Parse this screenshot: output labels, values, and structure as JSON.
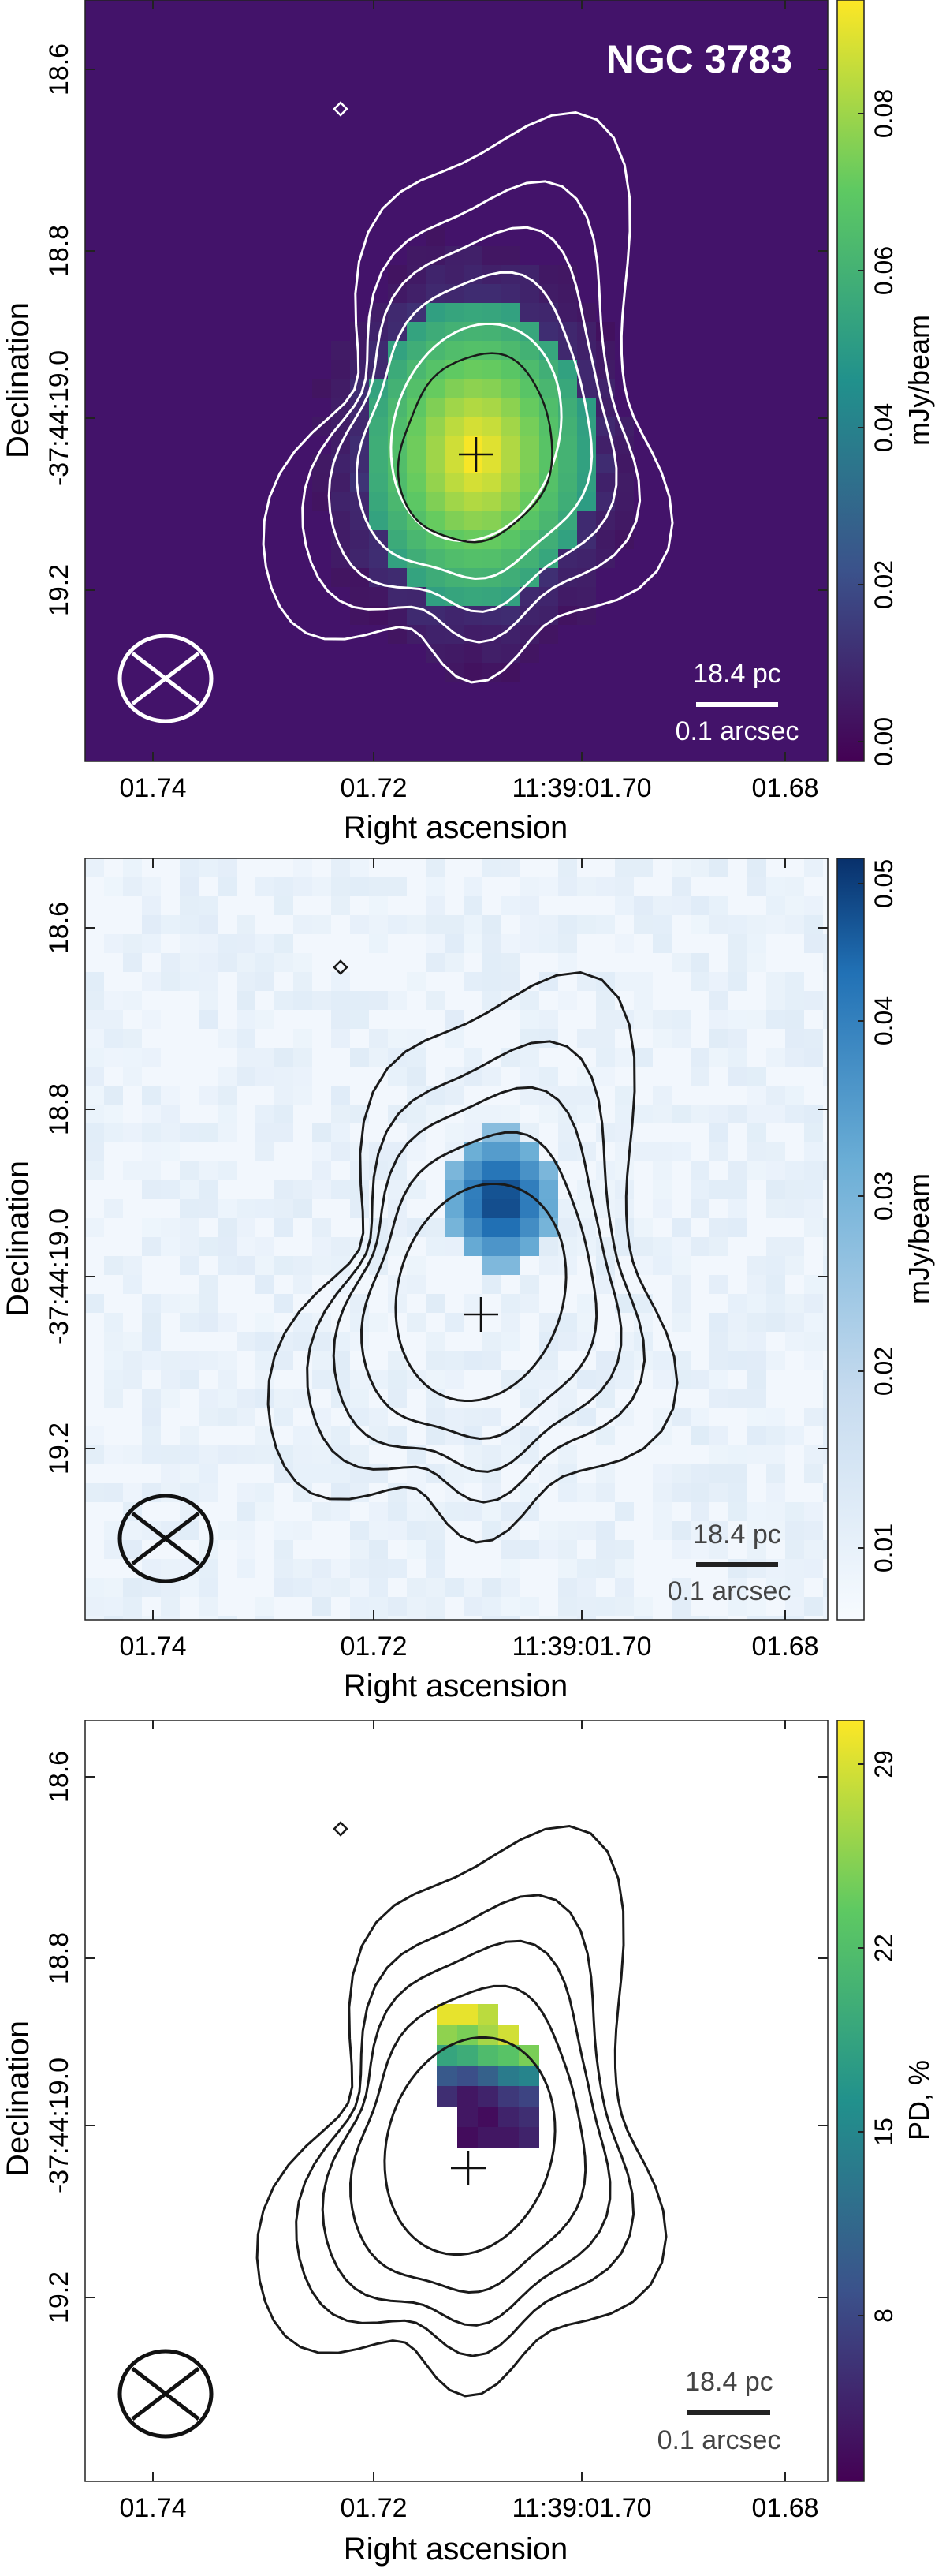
{
  "chart_data": [
    {
      "type": "heatmap",
      "title": "NGC 3783",
      "xlabel": "Right ascension",
      "ylabel": "Declination",
      "x_tick_labels": [
        "01.74",
        "01.72",
        "11:39:01.70",
        "01.68"
      ],
      "y_tick_labels": [
        "18.6",
        "18.8",
        "-37:44:19.0",
        "19.2"
      ],
      "colorbar_label": "mJy/beam",
      "colorbar_ticks": [
        "0.00",
        "0.02",
        "0.04",
        "0.06",
        "0.08"
      ],
      "colorbar_range": [
        0.0,
        0.097
      ],
      "colormap": "viridis",
      "background_color": "#43136a",
      "contour_color": "#ffffff",
      "marker": "+",
      "scalebar_pc": "18.4 pc",
      "scalebar_arcsec": "0.1 arcsec"
    },
    {
      "type": "heatmap",
      "title": "",
      "xlabel": "Right ascension",
      "ylabel": "Declination",
      "x_tick_labels": [
        "01.74",
        "01.72",
        "11:39:01.70",
        "01.68"
      ],
      "y_tick_labels": [
        "18.6",
        "18.8",
        "-37:44:19.0",
        "19.2"
      ],
      "colorbar_label": "mJy/beam",
      "colorbar_ticks": [
        "0.01",
        "0.02",
        "0.03",
        "0.04",
        "0.05"
      ],
      "colorbar_range": [
        0.008,
        0.052
      ],
      "colormap": "blues",
      "background_color": "#f2f7fd",
      "contour_color": "#1a1a1a",
      "marker": "+",
      "scalebar_pc": "18.4 pc",
      "scalebar_arcsec": "0.1 arcsec"
    },
    {
      "type": "heatmap",
      "title": "",
      "xlabel": "Right ascension",
      "ylabel": "Declination",
      "x_tick_labels": [
        "01.74",
        "01.72",
        "11:39:01.70",
        "01.68"
      ],
      "y_tick_labels": [
        "18.6",
        "18.8",
        "-37:44:19.0",
        "19.2"
      ],
      "colorbar_label": "PD, %",
      "colorbar_ticks": [
        "8",
        "15",
        "22",
        "29"
      ],
      "colorbar_range": [
        1,
        30
      ],
      "colormap": "viridis",
      "background_color": "#ffffff",
      "contour_color": "#1a1a1a",
      "marker": "+",
      "scalebar_pc": "18.4 pc",
      "scalebar_arcsec": "0.1 arcsec",
      "pd_pixels": [
        {
          "col": 0,
          "row": 0,
          "value": 29
        },
        {
          "col": 1,
          "row": 0,
          "value": 29
        },
        {
          "col": 2,
          "row": 0,
          "value": 27
        },
        {
          "col": 0,
          "row": 1,
          "value": 25
        },
        {
          "col": 1,
          "row": 1,
          "value": 24
        },
        {
          "col": 2,
          "row": 1,
          "value": 26
        },
        {
          "col": 3,
          "row": 1,
          "value": 28
        },
        {
          "col": 0,
          "row": 2,
          "value": 18
        },
        {
          "col": 1,
          "row": 2,
          "value": 19
        },
        {
          "col": 2,
          "row": 2,
          "value": 21
        },
        {
          "col": 3,
          "row": 2,
          "value": 22
        },
        {
          "col": 4,
          "row": 2,
          "value": 24
        },
        {
          "col": 0,
          "row": 3,
          "value": 9
        },
        {
          "col": 1,
          "row": 3,
          "value": 8
        },
        {
          "col": 2,
          "row": 3,
          "value": 10
        },
        {
          "col": 3,
          "row": 3,
          "value": 13
        },
        {
          "col": 4,
          "row": 3,
          "value": 14
        },
        {
          "col": 0,
          "row": 4,
          "value": 5
        },
        {
          "col": 1,
          "row": 4,
          "value": 3
        },
        {
          "col": 2,
          "row": 4,
          "value": 4
        },
        {
          "col": 3,
          "row": 4,
          "value": 6
        },
        {
          "col": 4,
          "row": 4,
          "value": 7
        },
        {
          "col": 1,
          "row": 5,
          "value": 3
        },
        {
          "col": 2,
          "row": 5,
          "value": 2
        },
        {
          "col": 3,
          "row": 5,
          "value": 4
        },
        {
          "col": 4,
          "row": 5,
          "value": 5
        },
        {
          "col": 1,
          "row": 6,
          "value": 2
        },
        {
          "col": 2,
          "row": 6,
          "value": 3
        },
        {
          "col": 3,
          "row": 6,
          "value": 3
        },
        {
          "col": 4,
          "row": 6,
          "value": 4
        }
      ]
    }
  ]
}
